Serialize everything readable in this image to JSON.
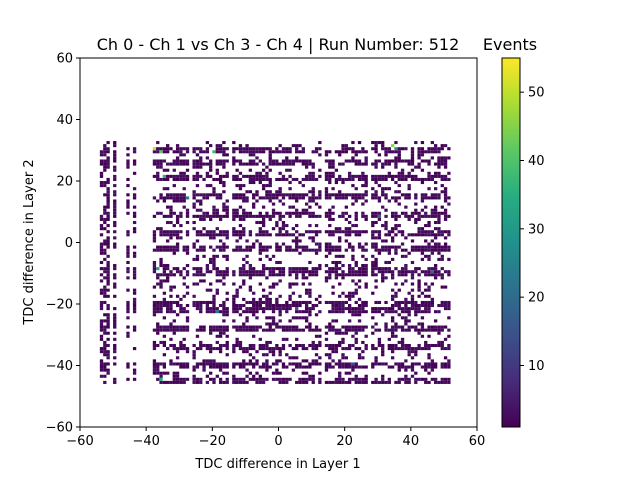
{
  "chart_data": {
    "type": "heatmap",
    "title": "Ch 0 - Ch 1 vs Ch 3 - Ch 4 | Run Number: 512",
    "xlabel": "TDC difference in Layer 1",
    "ylabel": "TDC difference in Layer 2",
    "xlim": [
      -60,
      60
    ],
    "ylim": [
      -60,
      60
    ],
    "xticks": [
      -60,
      -40,
      -20,
      0,
      20,
      40,
      60
    ],
    "yticks": [
      -60,
      -40,
      -20,
      0,
      20,
      40,
      60
    ],
    "colorbar": {
      "label": "Events",
      "min": 1,
      "max": 55,
      "ticks": [
        10,
        20,
        30,
        40,
        50
      ],
      "colormap": "viridis"
    },
    "bin_size": 1,
    "x_occupied": [
      -54,
      -53,
      -52,
      -50,
      -46,
      -44,
      -38,
      -37,
      -36,
      -35,
      -34,
      -33,
      -32,
      -31,
      -30,
      -29,
      -28,
      -26,
      -25,
      -24,
      -23,
      -22,
      -21,
      -20,
      -19,
      -18,
      -17,
      -16,
      -14,
      -13,
      -12,
      -11,
      -10,
      -9,
      -8,
      -7,
      -6,
      -5,
      -4,
      -3,
      -2,
      -1,
      0,
      1,
      2,
      3,
      4,
      5,
      6,
      7,
      8,
      9,
      10,
      11,
      12,
      14,
      15,
      16,
      17,
      18,
      19,
      20,
      21,
      22,
      23,
      24,
      25,
      26,
      28,
      29,
      30,
      31,
      32,
      33,
      34,
      35,
      36,
      37,
      38,
      39,
      40,
      41,
      42,
      43,
      44,
      45,
      46,
      47,
      48,
      49,
      50,
      51
    ],
    "y_dense_rows": [
      -46,
      -45,
      -41,
      -40,
      -35,
      -34,
      -29,
      -28,
      -23,
      -22,
      -21,
      -20,
      -11,
      -10,
      -9,
      -3,
      -2,
      2,
      3,
      8,
      9,
      14,
      15,
      20,
      21,
      25,
      26,
      29,
      30
    ],
    "y_range": [
      -46,
      32
    ],
    "hot_bins": [
      {
        "x": -38,
        "y": 30,
        "value": 50
      },
      {
        "x": -36,
        "y": 29,
        "value": 42
      },
      {
        "x": -35,
        "y": 21,
        "value": 36
      },
      {
        "x": -20,
        "y": 29,
        "value": 38
      },
      {
        "x": -37,
        "y": -9,
        "value": 30
      },
      {
        "x": -36,
        "y": -45,
        "value": 34
      },
      {
        "x": 34,
        "y": 31,
        "value": 46
      },
      {
        "x": 35,
        "y": 30,
        "value": 28
      },
      {
        "x": -19,
        "y": -23,
        "value": 22
      },
      {
        "x": 30,
        "y": 8,
        "value": 18
      },
      {
        "x": 5,
        "y": -22,
        "value": 16
      },
      {
        "x": -28,
        "y": 14,
        "value": 24
      },
      {
        "x": 22,
        "y": -40,
        "value": 14
      },
      {
        "x": 46,
        "y": -10,
        "value": 20
      }
    ]
  }
}
